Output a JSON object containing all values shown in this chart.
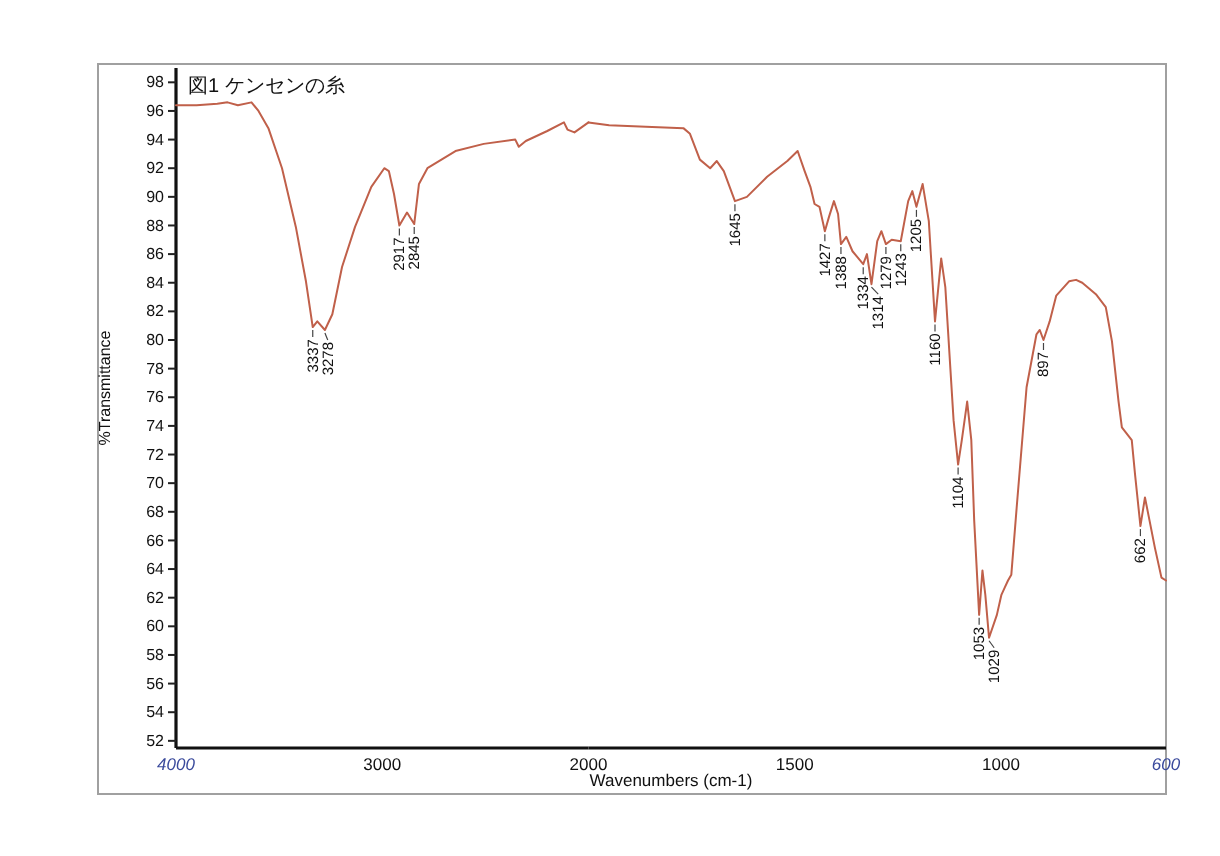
{
  "chart_data": [
    {
      "type": "line",
      "title": "図1 ケンセンの糸",
      "ylabel": "%Transmittance",
      "color": "#c0604a",
      "x": [
        4000,
        3900,
        3800,
        3750,
        3700,
        3634,
        3600,
        3552,
        3486,
        3419,
        3370,
        3337,
        3315,
        3278,
        3242,
        3195,
        3132,
        3053,
        2990,
        2968,
        2943,
        2917,
        2880,
        2845,
        2822,
        2781,
        2645,
        2508,
        2355,
        2338,
        2304,
        2200,
        2119,
        2102,
        2068,
        2000
      ],
      "values": [
        96.4,
        96.4,
        96.5,
        96.6,
        96.4,
        96.6,
        96.0,
        94.8,
        92.0,
        87.9,
        84.1,
        80.9,
        81.3,
        80.7,
        81.8,
        85.1,
        87.9,
        90.7,
        92.0,
        91.8,
        90.2,
        88.0,
        88.9,
        88.1,
        90.9,
        92.0,
        93.2,
        93.7,
        94.0,
        93.5,
        93.9,
        94.6,
        95.2,
        94.7,
        94.5,
        95.2
      ],
      "xlim": [
        4000,
        2000
      ],
      "xticks": [
        4000,
        3000
      ],
      "ylim": [
        51.5,
        99
      ],
      "yticks": [
        52,
        54,
        56,
        58,
        60,
        62,
        64,
        66,
        68,
        70,
        72,
        74,
        76,
        78,
        80,
        82,
        84,
        86,
        88,
        90,
        92,
        94,
        96,
        98
      ],
      "annotations": [
        {
          "text": "3337",
          "x": 3337,
          "y": 80.9
        },
        {
          "text": "3278",
          "x": 3278,
          "y": 80.7
        },
        {
          "text": "2917",
          "x": 2917,
          "y": 88.0
        },
        {
          "text": "2845",
          "x": 2845,
          "y": 88.1
        }
      ]
    },
    {
      "type": "line",
      "xlabel": "Wavenumbers (cm-1)",
      "color": "#c0604a",
      "x": [
        2000,
        1950,
        1861,
        1770,
        1754,
        1730,
        1705,
        1689,
        1672,
        1645,
        1616,
        1567,
        1518,
        1493,
        1476,
        1462,
        1452,
        1440,
        1427,
        1417,
        1405,
        1395,
        1388,
        1375,
        1360,
        1334,
        1325,
        1314,
        1300,
        1290,
        1279,
        1265,
        1243,
        1225,
        1215,
        1205,
        1190,
        1175,
        1160,
        1145,
        1135,
        1115,
        1104,
        1095,
        1082,
        1072,
        1065,
        1053,
        1045,
        1038,
        1029,
        1010,
        999,
        991,
        983,
        975,
        962,
        938,
        914,
        906,
        897,
        882,
        866,
        835,
        818,
        803,
        770,
        746,
        731,
        715,
        707,
        683,
        675,
        662,
        651,
        640,
        627,
        611,
        600
      ],
      "values": [
        95.2,
        95.0,
        94.9,
        94.8,
        94.4,
        92.6,
        92.0,
        92.5,
        91.8,
        89.7,
        90.0,
        91.4,
        92.5,
        93.2,
        91.8,
        90.7,
        89.5,
        89.3,
        87.6,
        88.6,
        89.7,
        88.8,
        86.7,
        87.2,
        86.2,
        85.3,
        86.0,
        83.9,
        86.9,
        87.6,
        86.7,
        87.0,
        86.9,
        89.7,
        90.4,
        89.3,
        90.9,
        88.3,
        81.3,
        85.7,
        83.7,
        74.4,
        71.3,
        73.0,
        75.7,
        73.0,
        67.4,
        60.8,
        63.9,
        62.2,
        59.2,
        60.8,
        62.2,
        62.7,
        63.2,
        63.6,
        68.3,
        76.7,
        80.4,
        80.7,
        80.0,
        81.3,
        83.1,
        84.1,
        84.2,
        84.0,
        83.2,
        82.3,
        79.9,
        75.7,
        73.9,
        73.0,
        70.6,
        67.0,
        69.0,
        67.4,
        65.5,
        63.4,
        63.2
      ],
      "xlim": [
        2000,
        600
      ],
      "xticks": [
        2000,
        1500,
        1000,
        600
      ],
      "ylim": [
        51.5,
        99
      ],
      "tick_labels": "x",
      "annotations": [
        {
          "text": "1645",
          "x": 1645,
          "y": 89.7
        },
        {
          "text": "1427",
          "x": 1427,
          "y": 87.6
        },
        {
          "text": "1388",
          "x": 1388,
          "y": 86.7
        },
        {
          "text": "1334",
          "x": 1334,
          "y": 85.3
        },
        {
          "text": "1314",
          "x": 1314,
          "y": 83.9
        },
        {
          "text": "1279",
          "x": 1279,
          "y": 86.7
        },
        {
          "text": "1243",
          "x": 1243,
          "y": 86.9
        },
        {
          "text": "1205",
          "x": 1205,
          "y": 89.3
        },
        {
          "text": "1160",
          "x": 1160,
          "y": 81.3
        },
        {
          "text": "1104",
          "x": 1104,
          "y": 71.3
        },
        {
          "text": "1053",
          "x": 1053,
          "y": 60.8
        },
        {
          "text": "1029",
          "x": 1029,
          "y": 59.2
        },
        {
          "text": "897",
          "x": 897,
          "y": 80.0
        },
        {
          "text": "662",
          "x": 662,
          "y": 67.0
        }
      ]
    }
  ]
}
